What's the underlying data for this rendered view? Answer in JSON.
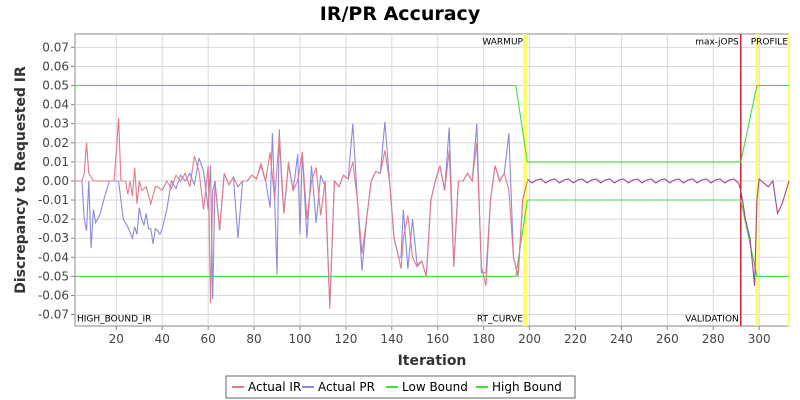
{
  "chart_data": {
    "type": "line",
    "title": "IR/PR Accuracy",
    "xlabel": "Iteration",
    "ylabel": "Discrepancy to Requested IR",
    "xlim": [
      2,
      313
    ],
    "ylim": [
      -0.076,
      0.077
    ],
    "xticks": [
      20,
      40,
      60,
      80,
      100,
      120,
      140,
      160,
      180,
      200,
      220,
      240,
      260,
      280,
      300
    ],
    "yticks": [
      -0.07,
      -0.06,
      -0.05,
      -0.04,
      -0.03,
      -0.02,
      -0.01,
      0.0,
      0.01,
      0.02,
      0.03,
      0.04,
      0.05,
      0.06,
      0.07
    ],
    "ytick_labels": [
      "-0.07",
      "-0.06",
      "-0.05",
      "-0.04",
      "-0.03",
      "-0.02",
      "-0.01",
      "0.00",
      "0.01",
      "0.02",
      "0.03",
      "0.04",
      "0.05",
      "0.06",
      "0.07"
    ],
    "grid": true,
    "legend": "bottom",
    "annotations": [
      {
        "text": "WARMUP",
        "x": 198,
        "y": 0.073
      },
      {
        "text": "max-jOPS",
        "x": 292,
        "y": 0.073
      },
      {
        "text": "PROFILE",
        "x": 300,
        "y": 0.073
      },
      {
        "text": "HIGH_BOUND_IR",
        "x": 2,
        "y": -0.072
      },
      {
        "text": "RT_CURVE",
        "x": 198,
        "y": -0.072
      },
      {
        "text": "VALIDATION",
        "x": 292,
        "y": -0.072
      }
    ],
    "markers": [
      {
        "x": 198,
        "color": "#ffff66",
        "width": 4
      },
      {
        "x": 292,
        "color": "#cc2233",
        "width": 1.5
      },
      {
        "x": 299,
        "color": "#ffff66",
        "width": 3
      },
      {
        "x": 313,
        "color": "#ffff66",
        "width": 2
      }
    ],
    "series": [
      {
        "name": "Actual IR",
        "color": "#e07b8a",
        "x": [
          2,
          5,
          6,
          7,
          8,
          10,
          15,
          18,
          19,
          20,
          21,
          22,
          24,
          25,
          26,
          27,
          28,
          29,
          30,
          31,
          33,
          35,
          37,
          38,
          40,
          42,
          44,
          46,
          48,
          50,
          52,
          54,
          56,
          58,
          60,
          61,
          62,
          63,
          65,
          67,
          69,
          71,
          73,
          75,
          77,
          79,
          81,
          83,
          85,
          87,
          89,
          91,
          93,
          95,
          97,
          99,
          101,
          103,
          105,
          107,
          109,
          111,
          113,
          115,
          117,
          119,
          121,
          123,
          125,
          127,
          129,
          131,
          133,
          135,
          137,
          139,
          141,
          143,
          144,
          145,
          147,
          149,
          151,
          153,
          155,
          157,
          159,
          161,
          163,
          165,
          167,
          169,
          171,
          173,
          175,
          177,
          179,
          181,
          183,
          185,
          187,
          189,
          191,
          193,
          195,
          197,
          199
        ],
        "y": [
          0.0,
          0.0,
          0.004,
          0.02,
          0.004,
          0.0,
          0.0,
          0.0,
          0.0,
          0.015,
          0.033,
          0.0,
          0.0,
          -0.007,
          0.0,
          -0.008,
          0.007,
          -0.012,
          0.0,
          -0.005,
          -0.003,
          -0.012,
          -0.003,
          -0.003,
          -0.005,
          0.0,
          -0.004,
          0.003,
          0.0,
          0.004,
          -0.003,
          0.013,
          0.005,
          -0.015,
          0.008,
          -0.064,
          -0.005,
          0.0,
          -0.026,
          0.004,
          -0.002,
          0.002,
          -0.003,
          0.0,
          0.0,
          0.003,
          0.001,
          0.009,
          0.0,
          0.015,
          -0.01,
          0.024,
          -0.017,
          0.01,
          -0.005,
          0.0,
          0.015,
          -0.02,
          0.0,
          0.007,
          -0.018,
          0.0,
          -0.067,
          0.0,
          -0.003,
          0.003,
          0.001,
          0.01,
          -0.01,
          -0.038,
          -0.02,
          0.0,
          0.005,
          0.004,
          0.016,
          0.0,
          -0.03,
          -0.04,
          -0.046,
          -0.03,
          -0.018,
          -0.04,
          -0.045,
          -0.042,
          -0.05,
          -0.01,
          0.0,
          0.008,
          -0.005,
          0.016,
          -0.045,
          0.0,
          0.0,
          0.004,
          0.0,
          0.02,
          -0.045,
          -0.055,
          -0.01,
          0.008,
          0.0,
          0.004,
          -0.005,
          -0.04,
          -0.05,
          -0.01,
          0.0
        ]
      },
      {
        "name": "Actual PR",
        "color": "#8a8ae0",
        "x": [
          2,
          5,
          6,
          7,
          8,
          9,
          10,
          11,
          13,
          15,
          17,
          19,
          21,
          23,
          25,
          27,
          28,
          29,
          30,
          31,
          32,
          33,
          34,
          35,
          36,
          37,
          38,
          39,
          40,
          41,
          42,
          44,
          46,
          48,
          50,
          52,
          54,
          56,
          58,
          60,
          61,
          62,
          63,
          65,
          67,
          69,
          71,
          73,
          75,
          77,
          79,
          81,
          83,
          85,
          87,
          88,
          89,
          90,
          91,
          92,
          93,
          95,
          97,
          99,
          100,
          101,
          103,
          105,
          107,
          109,
          111,
          113,
          115,
          117,
          119,
          121,
          123,
          125,
          127,
          129,
          131,
          133,
          135,
          137,
          139,
          141,
          143,
          144,
          145,
          147,
          149,
          151,
          153,
          155,
          157,
          159,
          161,
          163,
          165,
          167,
          169,
          171,
          173,
          175,
          177,
          179,
          181,
          183,
          185,
          187,
          189,
          191,
          193,
          195,
          197,
          199
        ],
        "y": [
          0.0,
          0.0,
          -0.02,
          -0.026,
          0.0,
          -0.035,
          -0.015,
          -0.022,
          -0.017,
          -0.008,
          0.0,
          0.0,
          0.0,
          -0.02,
          -0.024,
          -0.03,
          -0.024,
          -0.028,
          -0.014,
          -0.02,
          -0.023,
          -0.017,
          -0.025,
          -0.025,
          -0.033,
          -0.025,
          -0.026,
          -0.028,
          -0.025,
          -0.02,
          -0.015,
          0.0,
          -0.004,
          0.003,
          0.0,
          0.004,
          -0.002,
          0.012,
          0.005,
          -0.015,
          0.008,
          -0.062,
          0.0,
          -0.026,
          0.004,
          -0.002,
          0.002,
          -0.03,
          0.0,
          0.0,
          0.003,
          0.001,
          0.008,
          0.0,
          -0.014,
          0.025,
          -0.01,
          -0.049,
          0.027,
          0.0,
          -0.017,
          0.009,
          -0.005,
          0.014,
          -0.028,
          0.015,
          -0.03,
          0.008,
          -0.022,
          0.003,
          -0.003,
          -0.065,
          0.0,
          -0.003,
          0.003,
          0.001,
          0.03,
          -0.01,
          -0.047,
          -0.02,
          0.0,
          0.005,
          0.004,
          0.031,
          0.0,
          -0.03,
          -0.04,
          -0.04,
          -0.015,
          -0.046,
          -0.02,
          -0.044,
          -0.042,
          -0.05,
          -0.01,
          0.0,
          0.008,
          -0.005,
          0.028,
          -0.045,
          0.0,
          0.0,
          0.004,
          0.0,
          0.03,
          -0.048,
          -0.048,
          -0.01,
          0.008,
          0.0,
          0.004,
          0.025,
          -0.04,
          -0.05,
          -0.01,
          0.0
        ]
      },
      {
        "name": "Low Bound",
        "color": "#44dd44",
        "x": [
          2,
          194,
          199,
          292,
          299,
          313
        ],
        "y": [
          -0.05,
          -0.05,
          -0.01,
          -0.01,
          -0.05,
          -0.05
        ]
      },
      {
        "name": "High Bound",
        "color": "#44dd44",
        "x": [
          2,
          194,
          199,
          292,
          299,
          313
        ],
        "y": [
          0.05,
          0.05,
          0.01,
          0.01,
          0.05,
          0.05
        ]
      }
    ]
  }
}
